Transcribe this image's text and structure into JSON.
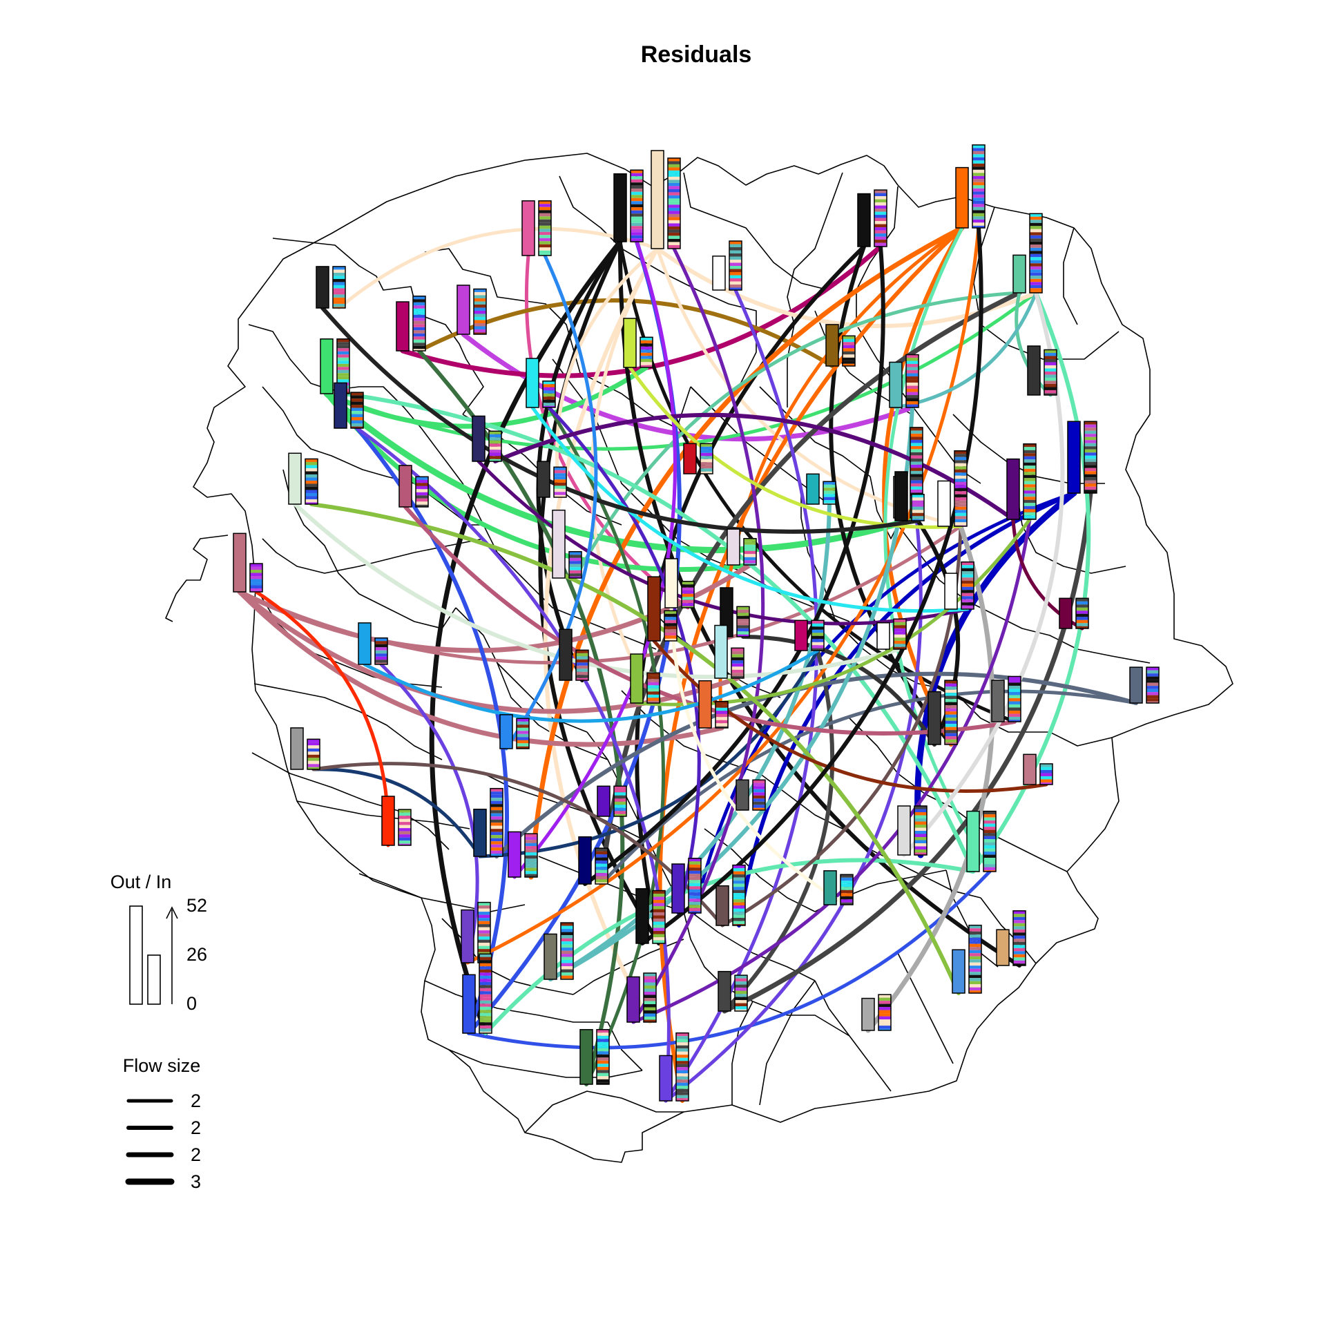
{
  "title": "Residuals",
  "legend_out_in": {
    "title": "Out / In",
    "ticks": [
      "52",
      "26",
      "0"
    ],
    "max": 52
  },
  "legend_flow": {
    "title": "Flow size",
    "labels": [
      "2",
      "2",
      "2",
      "3"
    ],
    "widths": [
      5,
      6,
      7,
      9
    ]
  },
  "nodes": [
    {
      "id": "n01",
      "col": "#f6e0c2",
      "out": 52,
      "in": 48
    },
    {
      "id": "n02",
      "col": "#111111",
      "out": 36,
      "in": 38
    },
    {
      "id": "n03",
      "col": "#e45aa0",
      "out": 29,
      "in": 29
    },
    {
      "id": "n04",
      "col": "#ffffff",
      "out": 18,
      "in": 26
    },
    {
      "id": "n05",
      "col": "#222222",
      "out": 22,
      "in": 22
    },
    {
      "id": "n06",
      "col": "#c03fd8",
      "out": 26,
      "in": 24
    },
    {
      "id": "n07",
      "col": "#b30068",
      "out": 26,
      "in": 29
    },
    {
      "id": "n08",
      "col": "#3ee070",
      "out": 29,
      "in": 29
    },
    {
      "id": "n09",
      "col": "#1f2a70",
      "out": 24,
      "in": 19
    },
    {
      "id": "n10",
      "col": "#111111",
      "out": 28,
      "in": 30
    },
    {
      "id": "n11",
      "col": "#ff6a00",
      "out": 32,
      "in": 44
    },
    {
      "id": "n12",
      "col": "#5fc9a0",
      "out": 20,
      "in": 42
    },
    {
      "id": "n13",
      "col": "#c8e840",
      "out": 26,
      "in": 16
    },
    {
      "id": "n14",
      "col": "#26e6f0",
      "out": 26,
      "in": 14
    },
    {
      "id": "n15",
      "col": "#8a6010",
      "out": 22,
      "in": 16
    },
    {
      "id": "n16",
      "col": "#333333",
      "out": 26,
      "in": 24
    },
    {
      "id": "n17",
      "col": "#2c2866",
      "out": 24,
      "in": 16
    },
    {
      "id": "n18",
      "col": "#cc1020",
      "out": 16,
      "in": 16
    },
    {
      "id": "n19",
      "col": "#5cbcbc",
      "out": 24,
      "in": 28
    },
    {
      "id": "n20",
      "col": "#d8ead8",
      "out": 27,
      "in": 24
    },
    {
      "id": "n21",
      "col": "#b85878",
      "out": 22,
      "in": 16
    },
    {
      "id": "n22",
      "col": "#333333",
      "out": 19,
      "in": 16
    },
    {
      "id": "n23",
      "col": "#e8dce8",
      "out": 36,
      "in": 14
    },
    {
      "id": "n24",
      "col": "#20b0b8",
      "out": 16,
      "in": 12
    },
    {
      "id": "n25",
      "col": "#888888",
      "out": 22,
      "in": 48
    },
    {
      "id": "n26",
      "col": "#ffffff",
      "out": 24,
      "in": 40
    },
    {
      "id": "n27",
      "col": "#580878",
      "out": 32,
      "in": 40
    },
    {
      "id": "n28",
      "col": "#0000c0",
      "out": 38,
      "in": 38
    },
    {
      "id": "n29",
      "col": "#bf7080",
      "out": 31,
      "in": 15
    },
    {
      "id": "n30",
      "col": "#111111",
      "out": 26,
      "in": 14
    },
    {
      "id": "n31",
      "col": "#e8dce8",
      "out": 19,
      "in": 14
    },
    {
      "id": "n32",
      "col": "#fff8e0",
      "out": 26,
      "in": 14
    },
    {
      "id": "n33",
      "col": "#8b2a0a",
      "out": 34,
      "in": 16
    },
    {
      "id": "n34",
      "col": "#111111",
      "out": 26,
      "in": 16
    },
    {
      "id": "n35",
      "col": "#b0e8ec",
      "out": 28,
      "in": 16
    },
    {
      "id": "n36",
      "col": "#c00068",
      "out": 16,
      "in": 16
    },
    {
      "id": "n37",
      "col": "#ffffff",
      "out": 14,
      "in": 16
    },
    {
      "id": "n38",
      "col": "#ffffff",
      "out": 19,
      "in": 25
    },
    {
      "id": "n39",
      "col": "#700040",
      "out": 16,
      "in": 16
    },
    {
      "id": "n40",
      "col": "#1ba4e8",
      "out": 22,
      "in": 14
    },
    {
      "id": "n41",
      "col": "#2b2b2b",
      "out": 27,
      "in": 16
    },
    {
      "id": "n42",
      "col": "#88c040",
      "out": 26,
      "in": 16
    },
    {
      "id": "n43",
      "col": "#e86a30",
      "out": 25,
      "in": 14
    },
    {
      "id": "n44",
      "col": "#3a3a3a",
      "out": 28,
      "in": 34
    },
    {
      "id": "n45",
      "col": "#666666",
      "out": 22,
      "in": 24
    },
    {
      "id": "n46",
      "col": "#5a6880",
      "out": 19,
      "in": 19
    },
    {
      "id": "n47",
      "col": "#999999",
      "out": 22,
      "in": 16
    },
    {
      "id": "n48",
      "col": "#2888f0",
      "out": 18,
      "in": 16
    },
    {
      "id": "n49",
      "col": "#c07888",
      "out": 16,
      "in": 11
    },
    {
      "id": "n50",
      "col": "#ff2a00",
      "out": 26,
      "in": 19
    },
    {
      "id": "n51",
      "col": "#6010c0",
      "out": 16,
      "in": 16
    },
    {
      "id": "n52",
      "col": "#555555",
      "out": 16,
      "in": 16
    },
    {
      "id": "n53",
      "col": "#163a70",
      "out": 25,
      "in": 36
    },
    {
      "id": "n54",
      "col": "#a020f0",
      "out": 24,
      "in": 23
    },
    {
      "id": "n55",
      "col": "#000070",
      "out": 25,
      "in": 19
    },
    {
      "id": "n56",
      "col": "#dddddd",
      "out": 26,
      "in": 26
    },
    {
      "id": "n57",
      "col": "#60e8b0",
      "out": 32,
      "in": 32
    },
    {
      "id": "n58",
      "col": "#30a090",
      "out": 18,
      "in": 16
    },
    {
      "id": "n59",
      "col": "#7040c8",
      "out": 28,
      "in": 32
    },
    {
      "id": "n60",
      "col": "#777766",
      "out": 24,
      "in": 30
    },
    {
      "id": "n61",
      "col": "#111111",
      "out": 29,
      "in": 28
    },
    {
      "id": "n62",
      "col": "#5020c0",
      "out": 26,
      "in": 29
    },
    {
      "id": "n63",
      "col": "#6a5050",
      "out": 21,
      "in": 32
    },
    {
      "id": "n64",
      "col": "#d8a870",
      "out": 19,
      "in": 29
    },
    {
      "id": "n65",
      "col": "#3050e8",
      "out": 31,
      "in": 42
    },
    {
      "id": "n66",
      "col": "#7020b0",
      "out": 24,
      "in": 26
    },
    {
      "id": "n67",
      "col": "#444444",
      "out": 21,
      "in": 19
    },
    {
      "id": "n68",
      "col": "#4a90e0",
      "out": 23,
      "in": 36
    },
    {
      "id": "n69",
      "col": "#aaaaaa",
      "out": 17,
      "in": 19
    },
    {
      "id": "n70",
      "col": "#3a7040",
      "out": 29,
      "in": 29
    },
    {
      "id": "n71",
      "col": "#6a40e0",
      "out": 24,
      "in": 36
    }
  ],
  "flows": [
    {
      "from": "n01",
      "to": "n05",
      "col": "#fde4c6",
      "w": 5
    },
    {
      "from": "n03",
      "to": "n32",
      "col": "#e04e9a",
      "w": 5
    },
    {
      "from": "n06",
      "to": "n19",
      "col": "#c040e0",
      "w": 7
    },
    {
      "from": "n07",
      "to": "n10",
      "col": "#b0006a",
      "w": 7
    },
    {
      "from": "n08",
      "to": "n25",
      "col": "#3ee070",
      "w": 9
    },
    {
      "from": "n08",
      "to": "n12",
      "col": "#3ee070",
      "w": 5
    },
    {
      "from": "n08",
      "to": "n13",
      "col": "#3ee070",
      "w": 7
    },
    {
      "from": "n08",
      "to": "n31",
      "col": "#3ee070",
      "w": 7
    },
    {
      "from": "n15",
      "to": "n07",
      "col": "#a07010",
      "w": 6
    },
    {
      "from": "n02",
      "to": "n65",
      "col": "#111111",
      "w": 7
    },
    {
      "from": "n02",
      "to": "n64",
      "col": "#111111",
      "w": 6
    },
    {
      "from": "n02",
      "to": "n61",
      "col": "#111111",
      "w": 6
    },
    {
      "from": "n02",
      "to": "n45",
      "col": "#111111",
      "w": 5
    },
    {
      "from": "n02",
      "to": "n41",
      "col": "#111111",
      "w": 6
    },
    {
      "from": "n01",
      "to": "n66",
      "col": "#fde4c6",
      "w": 6
    },
    {
      "from": "n01",
      "to": "n42",
      "col": "#fde4c6",
      "w": 5
    },
    {
      "from": "n01",
      "to": "n26",
      "col": "#fde4c6",
      "w": 5
    },
    {
      "from": "n01",
      "to": "n22",
      "col": "#fde4c6",
      "w": 5
    },
    {
      "from": "n01",
      "to": "n12",
      "col": "#fde4c6",
      "w": 6
    },
    {
      "from": "n10",
      "to": "n61",
      "col": "#111111",
      "w": 6
    },
    {
      "from": "n10",
      "to": "n44",
      "col": "#111111",
      "w": 6
    },
    {
      "from": "n11",
      "to": "n54",
      "col": "#ff6a00",
      "w": 7
    },
    {
      "from": "n11",
      "to": "n71",
      "col": "#ff6a00",
      "w": 6
    },
    {
      "from": "n11",
      "to": "n44",
      "col": "#ff6a00",
      "w": 6
    },
    {
      "from": "n11",
      "to": "n43",
      "col": "#ff6a00",
      "w": 5
    },
    {
      "from": "n11",
      "to": "n57",
      "col": "#60e8b0",
      "w": 5
    },
    {
      "from": "n12",
      "to": "n23",
      "col": "#5fc9a0",
      "w": 5
    },
    {
      "from": "n12",
      "to": "n55",
      "col": "#444444",
      "w": 7
    },
    {
      "from": "n12",
      "to": "n16",
      "col": "#5fc9a0",
      "w": 5
    },
    {
      "from": "n28",
      "to": "n56",
      "col": "#0000c0",
      "w": 9
    },
    {
      "from": "n28",
      "to": "n63",
      "col": "#0000c0",
      "w": 6
    },
    {
      "from": "n28",
      "to": "n62",
      "col": "#0000c0",
      "w": 5
    },
    {
      "from": "n29",
      "to": "n35",
      "col": "#bf7080",
      "w": 7
    },
    {
      "from": "n29",
      "to": "n43",
      "col": "#bf7080",
      "w": 7
    },
    {
      "from": "n29",
      "to": "n31",
      "col": "#bf7080",
      "w": 7
    },
    {
      "from": "n29",
      "to": "n26",
      "col": "#bf7080",
      "w": 5
    },
    {
      "from": "n65",
      "to": "n09",
      "col": "#3050e8",
      "w": 6
    },
    {
      "from": "n65",
      "to": "n02",
      "col": "#3050e8",
      "w": 6
    },
    {
      "from": "n65",
      "to": "n57",
      "col": "#3050e8",
      "w": 5
    },
    {
      "from": "n70",
      "to": "n07",
      "col": "#3a7040",
      "w": 6
    },
    {
      "from": "n70",
      "to": "n14",
      "col": "#3a7040",
      "w": 5
    },
    {
      "from": "n71",
      "to": "n09",
      "col": "#6a40e0",
      "w": 5
    },
    {
      "from": "n71",
      "to": "n04",
      "col": "#6a40e0",
      "w": 5
    },
    {
      "from": "n71",
      "to": "n25",
      "col": "#6a40e0",
      "w": 5
    },
    {
      "from": "n67",
      "to": "n28",
      "col": "#444444",
      "w": 7
    },
    {
      "from": "n67",
      "to": "n36",
      "col": "#444444",
      "w": 6
    },
    {
      "from": "n57",
      "to": "n65",
      "col": "#60e8b0",
      "w": 6
    },
    {
      "from": "n57",
      "to": "n08",
      "col": "#60e8b0",
      "w": 6
    },
    {
      "from": "n57",
      "to": "n12",
      "col": "#60e8b0",
      "w": 6
    },
    {
      "from": "n46",
      "to": "n53",
      "col": "#5a6880",
      "w": 6
    },
    {
      "from": "n46",
      "to": "n55",
      "col": "#5a6880",
      "w": 5
    },
    {
      "from": "n44",
      "to": "n30",
      "col": "#111111",
      "w": 6
    },
    {
      "from": "n44",
      "to": "n34",
      "col": "#333333",
      "w": 6
    },
    {
      "from": "n59",
      "to": "n40",
      "col": "#6a40e0",
      "w": 5
    },
    {
      "from": "n59",
      "to": "n11",
      "col": "#ff6a00",
      "w": 5
    },
    {
      "from": "n60",
      "to": "n19",
      "col": "#5cbcbc",
      "w": 6
    },
    {
      "from": "n60",
      "to": "n24",
      "col": "#5cbcbc",
      "w": 6
    },
    {
      "from": "n53",
      "to": "n36",
      "col": "#163a70",
      "w": 5
    },
    {
      "from": "n53",
      "to": "n47",
      "col": "#163a70",
      "w": 5
    },
    {
      "from": "n54",
      "to": "n02",
      "col": "#a020f0",
      "w": 5
    },
    {
      "from": "n55",
      "to": "n10",
      "col": "#111111",
      "w": 6
    },
    {
      "from": "n63",
      "to": "n47",
      "col": "#6a5050",
      "w": 5
    },
    {
      "from": "n63",
      "to": "n26",
      "col": "#6a5050",
      "w": 5
    },
    {
      "from": "n69",
      "to": "n26",
      "col": "#aaaaaa",
      "w": 7
    },
    {
      "from": "n62",
      "to": "n14",
      "col": "#5020c0",
      "w": 5
    },
    {
      "from": "n66",
      "to": "n01",
      "col": "#7020b0",
      "w": 5
    },
    {
      "from": "n66",
      "to": "n27",
      "col": "#7020b0",
      "w": 5
    },
    {
      "from": "n68",
      "to": "n20",
      "col": "#88c040",
      "w": 6
    },
    {
      "from": "n20",
      "to": "n37",
      "col": "#d8ead8",
      "w": 6
    },
    {
      "from": "n21",
      "to": "n45",
      "col": "#b85878",
      "w": 6
    },
    {
      "from": "n17",
      "to": "n38",
      "col": "#580878",
      "w": 5
    },
    {
      "from": "n27",
      "to": "n17",
      "col": "#580878",
      "w": 6
    },
    {
      "from": "n27",
      "to": "n39",
      "col": "#700040",
      "w": 5
    },
    {
      "from": "n14",
      "to": "n38",
      "col": "#26e6f0",
      "w": 5
    },
    {
      "from": "n42",
      "to": "n27",
      "col": "#88c040",
      "w": 5
    },
    {
      "from": "n33",
      "to": "n49",
      "col": "#8b2a0a",
      "w": 5
    },
    {
      "from": "n13",
      "to": "n26",
      "col": "#c8e840",
      "w": 5
    },
    {
      "from": "n05",
      "to": "n30",
      "col": "#222222",
      "w": 6
    },
    {
      "from": "n19",
      "to": "n12",
      "col": "#5cbcbc",
      "w": 5
    },
    {
      "from": "n32",
      "to": "n58",
      "col": "#fff8e0",
      "w": 5
    },
    {
      "from": "n40",
      "to": "n36",
      "col": "#1ba4e8",
      "w": 5
    },
    {
      "from": "n48",
      "to": "n03",
      "col": "#2888f0",
      "w": 5
    },
    {
      "from": "n61",
      "to": "n11",
      "col": "#111111",
      "w": 6
    },
    {
      "from": "n56",
      "to": "n12",
      "col": "#dddddd",
      "w": 6
    },
    {
      "from": "n50",
      "to": "n29",
      "col": "#ff2a00",
      "w": 5
    }
  ]
}
